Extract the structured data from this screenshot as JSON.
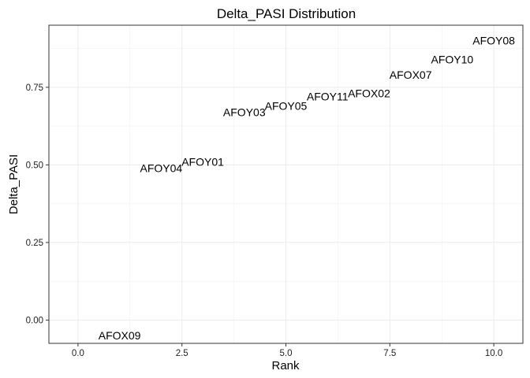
{
  "chart_data": {
    "type": "scatter",
    "title": "Delta_PASI Distribution",
    "xlabel": "Rank",
    "ylabel": "Delta_PASI",
    "xlim": [
      -0.7,
      10.7
    ],
    "ylim": [
      -0.075,
      0.95
    ],
    "xticks": [
      0,
      2.5,
      5,
      7.5,
      10
    ],
    "xtick_labels": [
      "0.0",
      "2.5",
      "5.0",
      "7.5",
      "10.0"
    ],
    "yticks": [
      0,
      0.25,
      0.5,
      0.75
    ],
    "ytick_labels": [
      "0.00",
      "0.25",
      "0.50",
      "0.75"
    ],
    "grid": true,
    "points": [
      {
        "label": "AFOX09",
        "x": 1,
        "y": -0.05
      },
      {
        "label": "AFOY04",
        "x": 2,
        "y": 0.49
      },
      {
        "label": "AFOY01",
        "x": 3,
        "y": 0.51
      },
      {
        "label": "AFOY03",
        "x": 4,
        "y": 0.67
      },
      {
        "label": "AFOY05",
        "x": 5,
        "y": 0.69
      },
      {
        "label": "AFOY11",
        "x": 6,
        "y": 0.72
      },
      {
        "label": "AFOX02",
        "x": 7,
        "y": 0.73
      },
      {
        "label": "AFOX07",
        "x": 8,
        "y": 0.79
      },
      {
        "label": "AFOY10",
        "x": 9,
        "y": 0.84
      },
      {
        "label": "AFOY08",
        "x": 10,
        "y": 0.9
      }
    ]
  }
}
